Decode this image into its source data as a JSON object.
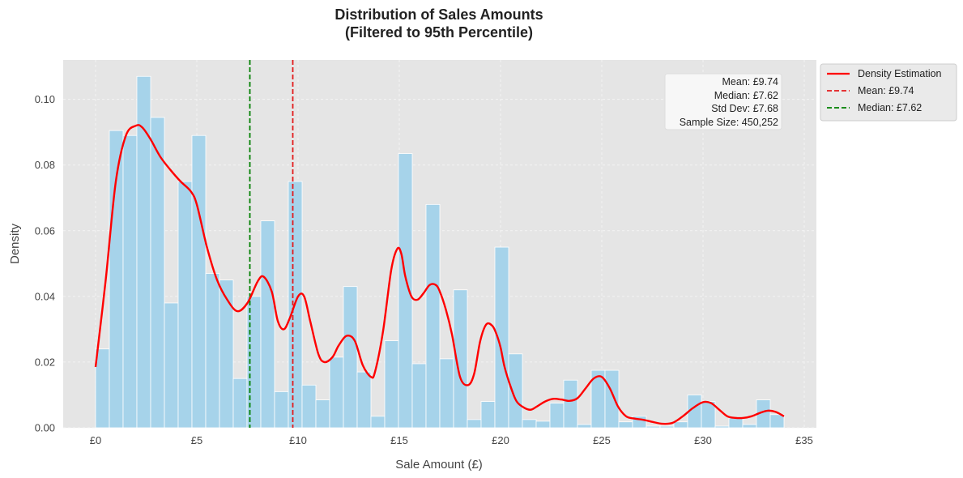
{
  "chart_data": {
    "type": "bar",
    "title_line1": "Distribution of Sales Amounts",
    "title_line2": "(Filtered to 95th Percentile)",
    "xlabel": "Sale Amount (£)",
    "ylabel": "Density",
    "xlim": [
      -1.6,
      35.6
    ],
    "ylim": [
      0,
      0.112
    ],
    "x_ticks": [
      0,
      5,
      10,
      15,
      20,
      25,
      30,
      35
    ],
    "x_tick_labels": [
      "£0",
      "£5",
      "£10",
      "£15",
      "£20",
      "£25",
      "£30",
      "£35"
    ],
    "y_ticks": [
      0,
      0.02,
      0.04,
      0.06,
      0.08,
      0.1
    ],
    "y_tick_labels": [
      "0.00",
      "0.02",
      "0.04",
      "0.06",
      "0.08",
      "0.10"
    ],
    "grid": true,
    "bin_start": 0,
    "bin_width": 0.68,
    "histogram": [
      0.024,
      0.0905,
      0.089,
      0.107,
      0.0945,
      0.038,
      0.075,
      0.089,
      0.047,
      0.045,
      0.015,
      0.04,
      0.063,
      0.011,
      0.075,
      0.013,
      0.0085,
      0.0215,
      0.043,
      0.017,
      0.0035,
      0.0265,
      0.0835,
      0.0195,
      0.068,
      0.021,
      0.042,
      0.0025,
      0.008,
      0.055,
      0.0225,
      0.0025,
      0.002,
      0.0075,
      0.0145,
      0.001,
      0.0175,
      0.0175,
      0.0018,
      0.0035,
      0.0005,
      0.0005,
      0.0018,
      0.01,
      0.008,
      0.0005,
      0.003,
      0.001,
      0.0085,
      0.004
    ],
    "density_curve": {
      "name": "Density Estimation",
      "x": [
        0,
        0.5,
        1.0,
        1.5,
        2.0,
        2.3,
        2.7,
        3.2,
        3.7,
        4.2,
        4.7,
        5.0,
        5.5,
        6.0,
        6.5,
        7.0,
        7.5,
        8.0,
        8.3,
        8.7,
        9.0,
        9.3,
        9.6,
        10.0,
        10.3,
        10.6,
        11.0,
        11.3,
        11.7,
        12.0,
        12.4,
        12.8,
        13.2,
        13.6,
        13.8,
        14.2,
        14.6,
        14.9,
        15.1,
        15.3,
        15.6,
        15.9,
        16.2,
        16.5,
        16.8,
        17.0,
        17.3,
        17.6,
        18.0,
        18.4,
        18.7,
        19.0,
        19.3,
        19.6,
        19.8,
        20.0,
        20.2,
        20.5,
        20.8,
        21.2,
        21.5,
        21.8,
        22.2,
        22.6,
        23.0,
        23.4,
        23.8,
        24.2,
        24.6,
        25.0,
        25.4,
        25.8,
        26.2,
        26.6,
        27.0,
        27.5,
        28.0,
        28.5,
        29.0,
        29.5,
        30.0,
        30.4,
        30.8,
        31.2,
        31.6,
        32.0,
        32.4,
        32.8,
        33.2,
        33.6,
        34.0
      ],
      "y": [
        0.0185,
        0.045,
        0.075,
        0.089,
        0.092,
        0.0915,
        0.088,
        0.0825,
        0.0785,
        0.075,
        0.072,
        0.068,
        0.055,
        0.045,
        0.039,
        0.0355,
        0.038,
        0.0445,
        0.046,
        0.0415,
        0.0325,
        0.03,
        0.0335,
        0.04,
        0.04,
        0.0325,
        0.0225,
        0.02,
        0.0215,
        0.025,
        0.028,
        0.0265,
        0.019,
        0.0155,
        0.017,
        0.0295,
        0.048,
        0.0545,
        0.053,
        0.046,
        0.04,
        0.039,
        0.041,
        0.0435,
        0.0435,
        0.0415,
        0.036,
        0.0285,
        0.0155,
        0.013,
        0.0165,
        0.0265,
        0.0315,
        0.031,
        0.0285,
        0.0245,
        0.0185,
        0.0125,
        0.008,
        0.006,
        0.0055,
        0.0065,
        0.008,
        0.0088,
        0.0086,
        0.0082,
        0.009,
        0.012,
        0.015,
        0.0155,
        0.012,
        0.0065,
        0.0035,
        0.0028,
        0.0025,
        0.0018,
        0.0012,
        0.0015,
        0.0035,
        0.006,
        0.0078,
        0.0075,
        0.0055,
        0.0035,
        0.003,
        0.003,
        0.0035,
        0.0045,
        0.0052,
        0.0048,
        0.0035
      ]
    },
    "mean_line": {
      "value": 9.74,
      "label": "Mean: £9.74",
      "color": "#e31a1c"
    },
    "median_line": {
      "value": 7.62,
      "label": "Median: £7.62",
      "color": "#008000"
    },
    "stats_box": [
      "Mean: £9.74",
      "Median: £7.62",
      "Std Dev: £7.68",
      "Sample Size: 450,252"
    ],
    "legend": {
      "placement": "outside-top-right",
      "entries": [
        "Density Estimation",
        "Mean: £9.74",
        "Median: £7.62"
      ]
    },
    "colors": {
      "bar_fill": "#a6d3ea",
      "bar_edge": "#ffffff",
      "density": "#ff0000",
      "mean": "#e31a1c",
      "median": "#008000",
      "plot_bg": "#e5e5e5",
      "grid": "#f4f4f4"
    }
  }
}
